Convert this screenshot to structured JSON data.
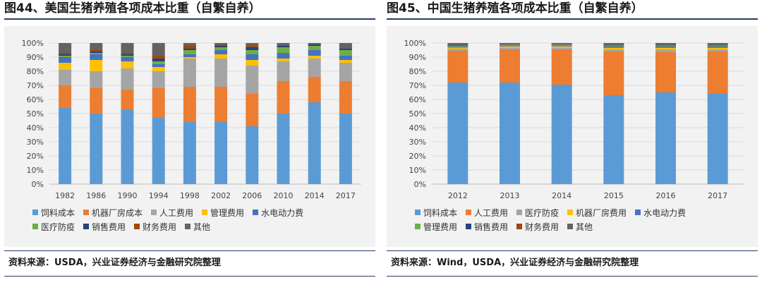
{
  "chart_data": [
    {
      "type": "bar",
      "stacked": true,
      "title": "图44、美国生猪养殖各项成本比重（自繁自养）",
      "source": "资料来源：USDA，兴业证券经济与金融研究院整理",
      "categories": [
        "1982",
        "1986",
        "1990",
        "1994",
        "1998",
        "2002",
        "2006",
        "2010",
        "2014",
        "2017"
      ],
      "y_ticks": [
        "0%",
        "10%",
        "20%",
        "30%",
        "40%",
        "50%",
        "60%",
        "70%",
        "80%",
        "90%",
        "100%"
      ],
      "ylim": [
        0,
        100
      ],
      "legend_rows": [
        [
          0,
          1,
          2,
          3,
          4
        ],
        [
          5,
          6,
          7,
          8
        ]
      ],
      "series": [
        {
          "name": "饲料成本",
          "color": "#5b9bd5",
          "values": [
            54,
            50,
            53,
            47,
            44,
            44,
            41,
            50,
            58,
            50
          ]
        },
        {
          "name": "机器厂房成本",
          "color": "#ed7d31",
          "values": [
            16,
            18,
            14,
            21,
            25,
            25,
            23,
            23,
            18,
            23
          ]
        },
        {
          "name": "人工费用",
          "color": "#a5a5a5",
          "values": [
            11,
            12,
            15,
            12,
            20,
            20,
            20,
            14,
            13,
            13
          ]
        },
        {
          "name": "管理费用",
          "color": "#ffc000",
          "values": [
            5,
            8,
            5,
            3,
            1,
            3,
            4,
            2,
            2,
            2
          ]
        },
        {
          "name": "水电动力费",
          "color": "#4472c4",
          "values": [
            4,
            4,
            3,
            2,
            2,
            3,
            4,
            4,
            4,
            3
          ]
        },
        {
          "name": "医疗防疫",
          "color": "#70ad47",
          "values": [
            1,
            1,
            1,
            2,
            3,
            2,
            3,
            4,
            3,
            4
          ]
        },
        {
          "name": "销售费用",
          "color": "#264478",
          "values": [
            1,
            1,
            1,
            2,
            1,
            1,
            2,
            1,
            1,
            1
          ]
        },
        {
          "name": "财务费用",
          "color": "#9e480e",
          "values": [
            1,
            1,
            1,
            2,
            2,
            1,
            1,
            0,
            0,
            0
          ]
        },
        {
          "name": "其他",
          "color": "#636363",
          "values": [
            7,
            5,
            7,
            9,
            2,
            1,
            2,
            2,
            1,
            4
          ]
        }
      ]
    },
    {
      "type": "bar",
      "stacked": true,
      "title": "图45、中国生猪养殖各项成本比重（自繁自养）",
      "source": "资料来源：Wind，USDA，兴业证券经济与金融研究院整理",
      "categories": [
        "2012",
        "2013",
        "2014",
        "2015",
        "2016",
        "2017"
      ],
      "y_ticks": [
        "0%",
        "10%",
        "20%",
        "30%",
        "40%",
        "50%",
        "60%",
        "70%",
        "80%",
        "90%",
        "100%"
      ],
      "ylim": [
        0,
        100
      ],
      "legend_rows": [
        [
          0,
          1,
          2,
          3,
          4
        ],
        [
          5,
          6,
          7,
          8
        ]
      ],
      "series": [
        {
          "name": "饲料成本",
          "color": "#5b9bd5",
          "values": [
            72,
            72,
            70.5,
            63,
            65,
            64
          ]
        },
        {
          "name": "人工费用",
          "color": "#ed7d31",
          "values": [
            22.5,
            23.5,
            25,
            31,
            28.5,
            30
          ]
        },
        {
          "name": "医疗防疫",
          "color": "#a5a5a5",
          "values": [
            1.5,
            1.3,
            1.3,
            1.5,
            2,
            1.5
          ]
        },
        {
          "name": "机器厂房费用",
          "color": "#ffc000",
          "values": [
            0.8,
            0.8,
            0.8,
            1,
            1,
            1
          ]
        },
        {
          "name": "水电动力费",
          "color": "#4472c4",
          "values": [
            0.7,
            0.6,
            0.6,
            0.7,
            0.7,
            0.7
          ]
        },
        {
          "name": "管理费用",
          "color": "#70ad47",
          "values": [
            0.5,
            0.4,
            0.4,
            0.5,
            0.5,
            0.5
          ]
        },
        {
          "name": "销售费用",
          "color": "#264478",
          "values": [
            0.4,
            0.3,
            0.3,
            0.4,
            0.4,
            0.4
          ]
        },
        {
          "name": "财务费用",
          "color": "#9e480e",
          "values": [
            0.3,
            0.2,
            0.2,
            0.3,
            0.3,
            0.3
          ]
        },
        {
          "name": "其他",
          "color": "#636363",
          "values": [
            1.3,
            0.9,
            0.9,
            1.6,
            1.6,
            1.6
          ]
        }
      ]
    }
  ]
}
